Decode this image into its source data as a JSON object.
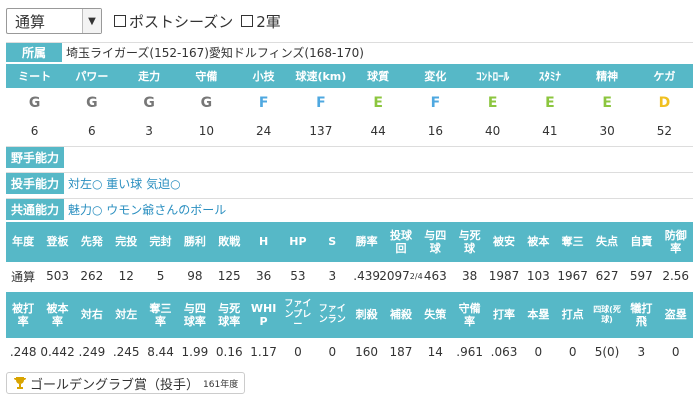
{
  "filter": {
    "mode": "通算",
    "postseason_label": "ポストシーズン",
    "farm_label": "2軍"
  },
  "affiliation": {
    "label": "所属",
    "value": "埼玉ライガーズ(152-167)愛知ドルフィンズ(168-170)"
  },
  "ability_headers": [
    "ミート",
    "パワー",
    "走力",
    "守備",
    "小技",
    "球速(km)",
    "球質",
    "変化",
    "ｺﾝﾄﾛｰﾙ",
    "ｽﾀﾐﾅ",
    "精神",
    "ケガ"
  ],
  "ability_grades": [
    {
      "g": "G",
      "color": "#777777"
    },
    {
      "g": "G",
      "color": "#777777"
    },
    {
      "g": "G",
      "color": "#777777"
    },
    {
      "g": "G",
      "color": "#777777"
    },
    {
      "g": "F",
      "color": "#4fa8e0"
    },
    {
      "g": "F",
      "color": "#4fa8e0"
    },
    {
      "g": "E",
      "color": "#8cc63f"
    },
    {
      "g": "F",
      "color": "#4fa8e0"
    },
    {
      "g": "E",
      "color": "#8cc63f"
    },
    {
      "g": "E",
      "color": "#8cc63f"
    },
    {
      "g": "E",
      "color": "#8cc63f"
    },
    {
      "g": "D",
      "color": "#f0c020"
    }
  ],
  "ability_values": [
    "6",
    "6",
    "3",
    "10",
    "24",
    "137",
    "44",
    "16",
    "40",
    "41",
    "30",
    "52"
  ],
  "fielder_ability": {
    "label": "野手能力",
    "value": ""
  },
  "pitcher_ability": {
    "label": "投手能力",
    "value": "対左○ 重い球 気迫○"
  },
  "common_ability": {
    "label": "共通能力",
    "value": "魅力○ ウモン爺さんのボール"
  },
  "pitch_headers1": [
    "年度",
    "登板",
    "先発",
    "完投",
    "完封",
    "勝利",
    "敗戦",
    "H",
    "HP",
    "S",
    "勝率",
    "投球回",
    "与四球",
    "与死球",
    "被安",
    "被本",
    "奪三",
    "失点",
    "自責",
    "防御率"
  ],
  "pitch_values1": [
    "通算",
    "503",
    "262",
    "12",
    "5",
    "98",
    "125",
    "36",
    "53",
    "3",
    ".439",
    "2097",
    "463",
    "38",
    "1987",
    "103",
    "1967",
    "627",
    "597",
    "2.56"
  ],
  "innings_fraction": "2/4",
  "pitch_headers2": [
    "被打率",
    "被本率",
    "対右",
    "対左",
    "奪三率",
    "与四球率",
    "与死球率",
    "WHIP",
    "ファインプレー",
    "ファインラン",
    "刺殺",
    "補殺",
    "失策",
    "守備率",
    "打率",
    "本塁",
    "打点",
    "四球(死球)",
    "犠打飛",
    "盗塁"
  ],
  "pitch_values2": [
    ".248",
    "0.442",
    ".249",
    ".245",
    "8.44",
    "1.99",
    "0.16",
    "1.17",
    "0",
    "0",
    "160",
    "187",
    "14",
    ".961",
    ".063",
    "0",
    "0",
    "5(0)",
    "3",
    "0"
  ],
  "award": {
    "title": "ゴールデングラブ賞（投手）",
    "year": "161年度",
    "icon": "trophy-icon"
  }
}
